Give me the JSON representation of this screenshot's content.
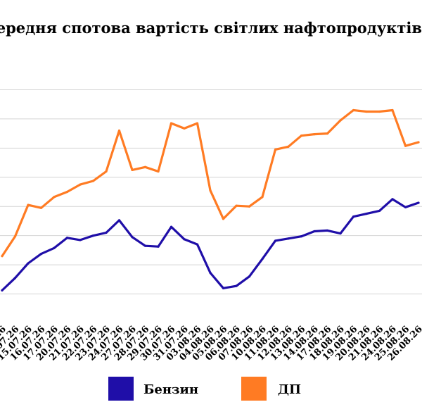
{
  "chart_data": {
    "type": "line",
    "title": "Середня спотова вартість світлих нафтопродуктів в Європі",
    "categories": [
      "13.07.26",
      "14.07.26",
      "15.07.26",
      "16.07.26",
      "17.07.26",
      "20.07.26",
      "21.07.26",
      "22.07.26",
      "23.07.26",
      "24.07.26",
      "27.07.26",
      "28.07.26",
      "29.07.26",
      "30.07.26",
      "31.07.26",
      "03.08.26",
      "04.08.26",
      "05.08.26",
      "06.08.26",
      "07.08.26",
      "10.08.26",
      "11.08.26",
      "12.08.26",
      "13.08.26",
      "14.08.26",
      "17.08.26",
      "18.08.26",
      "19.08.26",
      "20.08.26",
      "21.08.26",
      "24.08.26",
      "25.08.26",
      "26.08.26"
    ],
    "series": [
      {
        "name": "Бензин",
        "color": "#1f0ea8",
        "values": [
          0.5,
          2.2,
          4.2,
          5.5,
          6.3,
          7.7,
          7.4,
          8.0,
          8.4,
          10.1,
          7.8,
          6.6,
          6.5,
          9.2,
          7.5,
          6.8,
          2.9,
          0.8,
          1.1,
          2.4,
          4.8,
          7.3,
          7.6,
          7.9,
          8.6,
          8.7,
          8.3,
          10.6,
          11.0,
          11.4,
          13.0,
          11.9,
          12.5
        ],
        "value_labels": [
          "",
          "",
          "",
          "",
          "",
          "",
          "",
          "",
          "",
          "",
          "",
          "",
          "",
          "",
          "",
          "",
          "",
          "",
          "",
          "",
          "",
          "",
          "",
          "",
          "",
          "",
          "",
          "",
          "",
          "",
          "",
          "",
          ""
        ]
      },
      {
        "name": "ДП",
        "color": "#ff7b23",
        "values": [
          5.2,
          7.9,
          12.2,
          11.8,
          13.3,
          14.0,
          15.0,
          15.5,
          16.8,
          22.4,
          17.0,
          17.4,
          16.8,
          23.4,
          22.7,
          23.4,
          14.2,
          10.3,
          12.1,
          12.0,
          13.3,
          19.8,
          20.2,
          21.7,
          21.9,
          22.0,
          23.8,
          25.2,
          25.0,
          25.0,
          25.2,
          20.3,
          20.8
        ]
      }
    ],
    "ylim": [
      -4,
      32
    ],
    "gridlines": [
      0,
      4,
      8,
      12,
      16,
      20,
      24,
      28
    ],
    "grid": true,
    "legend": "bottom"
  }
}
